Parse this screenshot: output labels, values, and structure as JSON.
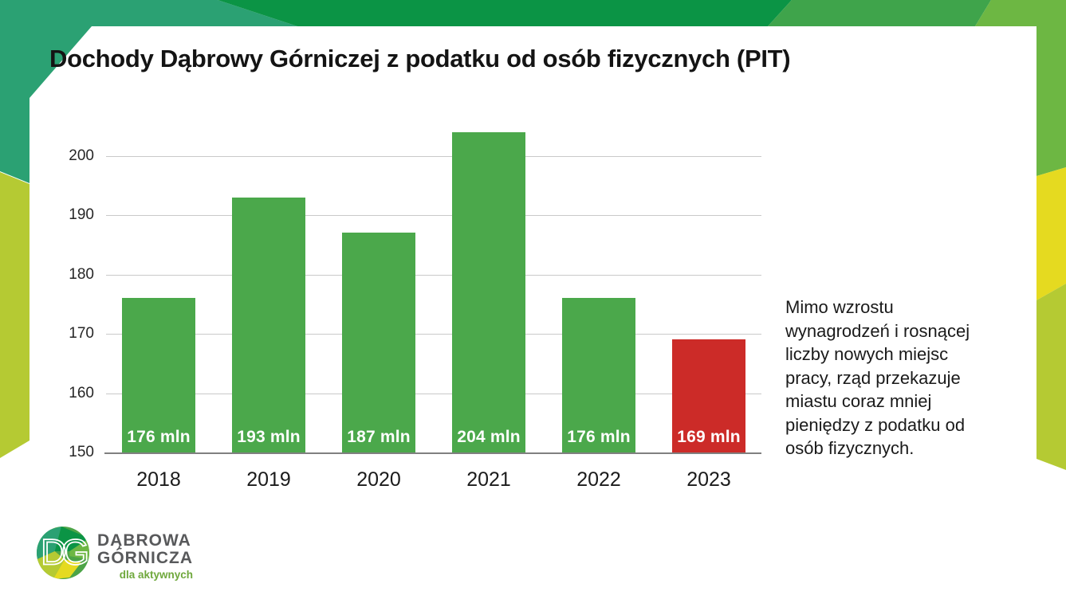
{
  "slide": {
    "annotation": "Mimo wzrostu\nwynagrodzeń i rosnącej\nliczby nowych miejsc\npracy, rząd przekazuje\nmiastu coraz mniej\npieniędzy z podatku od\nosób fizycznych."
  },
  "chart_data": {
    "type": "bar",
    "title": "Dochody Dąbrowy Górniczej z podatku od osób fizycznych (PIT)",
    "categories": [
      "2018",
      "2019",
      "2020",
      "2021",
      "2022",
      "2023"
    ],
    "values": [
      176,
      193,
      187,
      204,
      176,
      169
    ],
    "bar_labels": [
      "176 mln",
      "193 mln",
      "187 mln",
      "204 mln",
      "176 mln",
      "169 mln"
    ],
    "bar_colors": [
      "#4BA84B",
      "#4BA84B",
      "#4BA84B",
      "#4BA84B",
      "#4BA84B",
      "#CC2B28"
    ],
    "value_unit": "mln",
    "xlabel": "",
    "ylabel": "",
    "y_ticks": [
      150,
      160,
      170,
      180,
      190,
      200
    ],
    "ylim": [
      150,
      206
    ],
    "grid": true,
    "legend": false,
    "highlight": {
      "category": "2023",
      "color": "#CC2B28"
    }
  },
  "logo": {
    "monogram": "DG",
    "name_line1": "DĄBROWA",
    "name_line2": "GÓRNICZA",
    "tagline": "dla aktywnych"
  },
  "colors": {
    "bar_green": "#4BA84B",
    "bar_red": "#CC2B28",
    "teal": "#2BA173",
    "dark_green": "#0B9445",
    "mid_green": "#3FA44B",
    "light_green": "#6DB743",
    "yellow": "#E5DA20",
    "yellow_green": "#B5CA33",
    "gridline": "#C9C9C9",
    "axis_line": "#808080",
    "text_dark": "#1B1B1B",
    "logo_gray": "#58595B",
    "logo_green": "#6FA83C",
    "logo_circle_base": "#4CA447"
  }
}
